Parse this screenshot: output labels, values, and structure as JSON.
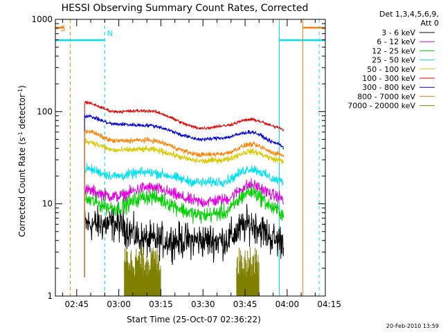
{
  "chart_data": {
    "type": "line",
    "title": "HESSI Observing Summary Count Rates, Corrected",
    "xlabel": "Start Time (25-Oct-07 02:36:22)",
    "ylabel_main": "Corrected Count Rate (s",
    "ylabel_sup1": "-1",
    "ylabel_mid": " detector",
    "ylabel_sup2": "-1",
    "ylabel_end": ")",
    "y_scale": "log",
    "ylim": [
      1,
      1000
    ],
    "xlim_minutes": [
      -7.6,
      88.6
    ],
    "x_ticks": [
      {
        "min": 0,
        "label": "02:45"
      },
      {
        "min": 15,
        "label": "03:00"
      },
      {
        "min": 30,
        "label": "03:15"
      },
      {
        "min": 45,
        "label": "03:30"
      },
      {
        "min": 60,
        "label": "03:45"
      },
      {
        "min": 75,
        "label": "04:00"
      },
      {
        "min": 90,
        "label": "04:15"
      }
    ],
    "y_ticks": [
      {
        "value": 1,
        "label": "1"
      },
      {
        "value": 10,
        "label": "10"
      },
      {
        "value": 100,
        "label": "100"
      },
      {
        "value": 1000,
        "label": "1000"
      }
    ],
    "legend_header": [
      "Det 1,3,4,5,6,9,",
      "Att 0"
    ],
    "series": [
      {
        "name": "3 - 6 keV",
        "color": "#000000",
        "segments": [
          [
            2.8,
            6
          ],
          [
            14,
            6
          ],
          [
            25,
            4
          ],
          [
            45,
            4
          ],
          [
            52,
            4
          ],
          [
            62,
            6
          ],
          [
            72,
            4
          ],
          [
            73.8,
            4
          ]
        ],
        "noise": 0.28
      },
      {
        "name": "6 - 12 keV",
        "color": "#e000e0",
        "segments": [
          [
            2.8,
            14
          ],
          [
            14,
            12
          ],
          [
            25,
            15
          ],
          [
            45,
            10.5
          ],
          [
            52,
            11
          ],
          [
            62,
            16
          ],
          [
            72,
            12
          ],
          [
            73.8,
            11
          ]
        ],
        "noise": 0.1
      },
      {
        "name": "12 - 25 keV",
        "color": "#00d000",
        "segments": [
          [
            2.8,
            11
          ],
          [
            14,
            9
          ],
          [
            25,
            12
          ],
          [
            45,
            7.5
          ],
          [
            52,
            8
          ],
          [
            62,
            13.5
          ],
          [
            72,
            8.5
          ],
          [
            73.8,
            7.5
          ]
        ],
        "noise": 0.13
      },
      {
        "name": "25 - 50 keV",
        "color": "#00e0f0",
        "segments": [
          [
            2.8,
            24
          ],
          [
            14,
            20
          ],
          [
            25,
            22
          ],
          [
            45,
            17
          ],
          [
            52,
            17.5
          ],
          [
            62,
            24
          ],
          [
            72,
            18
          ],
          [
            73.8,
            17
          ]
        ],
        "noise": 0.08
      },
      {
        "name": "50 - 100 keV",
        "color": "#d8c800",
        "segments": [
          [
            2.8,
            48
          ],
          [
            14,
            38
          ],
          [
            25,
            39
          ],
          [
            45,
            29
          ],
          [
            52,
            30
          ],
          [
            62,
            37
          ],
          [
            72,
            30
          ],
          [
            73.8,
            29
          ]
        ],
        "noise": 0.05
      },
      {
        "name": "100 - 300 keV",
        "color": "#e00000",
        "segments": [
          [
            2.8,
            125
          ],
          [
            14,
            100
          ],
          [
            25,
            102
          ],
          [
            45,
            66
          ],
          [
            52,
            70
          ],
          [
            62,
            82
          ],
          [
            72,
            68
          ],
          [
            73.8,
            63
          ]
        ],
        "noise": 0.025
      },
      {
        "name": "300 - 800 keV",
        "color": "#0000d0",
        "segments": [
          [
            2.8,
            90
          ],
          [
            14,
            73
          ],
          [
            25,
            71
          ],
          [
            45,
            50
          ],
          [
            52,
            52
          ],
          [
            62,
            60
          ],
          [
            72,
            45
          ],
          [
            73.8,
            40
          ]
        ],
        "noise": 0.03
      },
      {
        "name": "800 - 7000 keV",
        "color": "#ff8000",
        "segments": [
          [
            2.8,
            62
          ],
          [
            14,
            48
          ],
          [
            25,
            49
          ],
          [
            45,
            34
          ],
          [
            52,
            35
          ],
          [
            62,
            44
          ],
          [
            72,
            35
          ],
          [
            73.8,
            33
          ]
        ],
        "noise": 0.04
      },
      {
        "name": "7000 - 20000 keV",
        "color": "#808000",
        "segments": [
          [
            17,
            2.2
          ],
          [
            30,
            2.2
          ],
          [
            57,
            2.2
          ],
          [
            65,
            2.2
          ]
        ],
        "noise": 0.55
      }
    ],
    "flags": [
      {
        "label": "S",
        "color": "#ff8000",
        "bar": [
          -7.6,
          -4.4
        ],
        "level": 1000,
        "line_min": -2.3,
        "line_style": "dashed"
      },
      {
        "label": "N",
        "color": "#00e0f0",
        "bar": [
          -7.6,
          10
        ],
        "level": 840,
        "line_min": 10,
        "line_style": "dashed"
      },
      {
        "label": "",
        "color": "#00e0f0",
        "bar": [
          72.2,
          88.6
        ],
        "level": 840,
        "line_min": 72.2,
        "line_style": "solid"
      },
      {
        "label": "",
        "color": "#ff8000",
        "bar": [
          80.6,
          88.6
        ],
        "level": 1000,
        "line_min": 80.6,
        "line_style": "solid"
      },
      {
        "label": "",
        "color": "#00e0f0",
        "bar": null,
        "level": null,
        "line_min": 86.4,
        "line_style": "dashed"
      }
    ],
    "footer_timestamp": "20-Feb-2010 13:59"
  }
}
